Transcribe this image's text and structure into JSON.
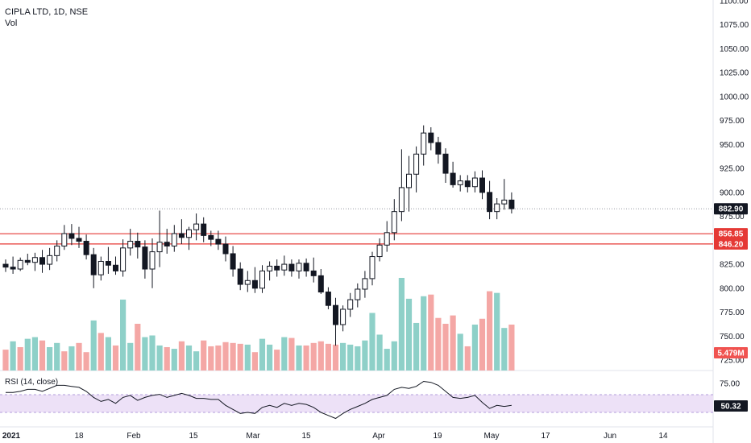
{
  "chart_data": {
    "type": "candlestick",
    "title": "CIPLA LTD, 1D, NSE",
    "volume_label": "Vol",
    "rsi_label": "RSI (14, close)",
    "price_axis": {
      "ylim": [
        730,
        1110
      ],
      "ticks": [
        "1100.00",
        "1075.00",
        "1050.00",
        "1025.00",
        "1000.00",
        "975.00",
        "950.00",
        "925.00",
        "900.00",
        "875.00",
        "850.00",
        "825.00",
        "800.00",
        "775.00",
        "750.00",
        "725.00"
      ]
    },
    "rsi_axis": {
      "ylim": [
        35,
        82
      ],
      "ticks": [
        "75.00",
        "50.00"
      ],
      "band": [
        30,
        70
      ]
    },
    "date_ticks": [
      "2021",
      "18",
      "Feb",
      "15",
      "Mar",
      "15",
      "Apr",
      "19",
      "May",
      "17",
      "Jun",
      "14"
    ],
    "last_price": {
      "label": "882.90",
      "value": 882.9
    },
    "levels": [
      {
        "label": "856.85",
        "value": 856.85
      },
      {
        "label": "846.20",
        "value": 846.2
      }
    ],
    "volume_tag": "5.479M",
    "rsi_tag": "50.32",
    "colors": {
      "up": "#26a69a",
      "down": "#000000",
      "vol_up": "#8ed0c8",
      "vol_down": "#f4a7a5",
      "level": "#e53935",
      "rsi": "#131722",
      "rsi_band": "#ede1f7",
      "tag_dark": "#131722",
      "tag_red": "#e53935",
      "vol_tag": "#f05350"
    },
    "candles": [
      [
        825,
        830,
        817,
        822
      ],
      [
        822,
        833,
        815,
        820
      ],
      [
        820,
        832,
        818,
        829
      ],
      [
        829,
        836,
        824,
        827
      ],
      [
        827,
        837,
        818,
        832
      ],
      [
        832,
        840,
        816,
        825
      ],
      [
        825,
        842,
        819,
        834
      ],
      [
        834,
        850,
        828,
        844
      ],
      [
        844,
        866,
        840,
        857
      ],
      [
        857,
        867,
        845,
        852
      ],
      [
        852,
        864,
        842,
        849
      ],
      [
        849,
        856,
        830,
        835
      ],
      [
        835,
        842,
        800,
        814
      ],
      [
        814,
        833,
        808,
        828
      ],
      [
        828,
        843,
        815,
        824
      ],
      [
        824,
        833,
        814,
        818
      ],
      [
        818,
        851,
        812,
        842
      ],
      [
        842,
        862,
        834,
        849
      ],
      [
        849,
        858,
        831,
        843
      ],
      [
        843,
        850,
        810,
        820
      ],
      [
        820,
        852,
        800,
        838
      ],
      [
        838,
        881,
        822,
        848
      ],
      [
        848,
        862,
        836,
        844
      ],
      [
        844,
        866,
        838,
        857
      ],
      [
        857,
        872,
        846,
        853
      ],
      [
        853,
        864,
        840,
        861
      ],
      [
        861,
        878,
        850,
        867
      ],
      [
        867,
        874,
        848,
        855
      ],
      [
        855,
        860,
        844,
        851
      ],
      [
        851,
        860,
        840,
        846
      ],
      [
        846,
        854,
        828,
        836
      ],
      [
        836,
        844,
        812,
        820
      ],
      [
        820,
        827,
        798,
        804
      ],
      [
        804,
        818,
        796,
        808
      ],
      [
        808,
        822,
        795,
        800
      ],
      [
        800,
        824,
        795,
        818
      ],
      [
        818,
        828,
        808,
        823
      ],
      [
        823,
        830,
        812,
        819
      ],
      [
        819,
        834,
        813,
        825
      ],
      [
        825,
        830,
        812,
        818
      ],
      [
        818,
        830,
        810,
        826
      ],
      [
        826,
        831,
        812,
        818
      ],
      [
        818,
        832,
        806,
        813
      ],
      [
        813,
        820,
        794,
        796
      ],
      [
        796,
        801,
        778,
        782
      ],
      [
        782,
        790,
        740,
        762
      ],
      [
        762,
        782,
        755,
        778
      ],
      [
        778,
        795,
        770,
        788
      ],
      [
        788,
        805,
        780,
        799
      ],
      [
        799,
        818,
        790,
        810
      ],
      [
        810,
        838,
        803,
        833
      ],
      [
        833,
        852,
        828,
        845
      ],
      [
        845,
        870,
        838,
        858
      ],
      [
        858,
        893,
        850,
        880
      ],
      [
        880,
        945,
        870,
        905
      ],
      [
        905,
        938,
        880,
        919
      ],
      [
        919,
        948,
        900,
        940
      ],
      [
        940,
        970,
        928,
        962
      ],
      [
        962,
        968,
        944,
        952
      ],
      [
        952,
        958,
        930,
        940
      ],
      [
        940,
        946,
        910,
        920
      ],
      [
        920,
        932,
        905,
        908
      ],
      [
        908,
        918,
        901,
        912
      ],
      [
        912,
        918,
        900,
        906
      ],
      [
        906,
        922,
        900,
        915
      ],
      [
        915,
        923,
        893,
        900
      ],
      [
        900,
        912,
        872,
        880
      ],
      [
        880,
        894,
        872,
        888
      ],
      [
        888,
        914,
        882,
        892
      ],
      [
        892,
        900,
        878,
        883
      ]
    ],
    "volume_millions": [
      2.5,
      3.5,
      2.8,
      3.8,
      4.0,
      3.6,
      2.8,
      3.3,
      2.3,
      2.9,
      3.3,
      2.2,
      6.0,
      4.5,
      4.0,
      3.0,
      8.5,
      3.3,
      5.6,
      4.0,
      4.2,
      3.0,
      2.8,
      2.6,
      3.5,
      3.0,
      2.3,
      3.6,
      2.9,
      3.0,
      3.4,
      3.3,
      3.2,
      3.1,
      2.2,
      3.8,
      3.1,
      2.5,
      4.0,
      3.9,
      3.0,
      3.0,
      3.3,
      3.5,
      3.2,
      3.1,
      3.3,
      3.1,
      2.9,
      3.6,
      6.9,
      4.3,
      2.6,
      3.5,
      11.1,
      8.6,
      5.7,
      8.9,
      9.1,
      6.3,
      5.6,
      6.6,
      4.4,
      2.9,
      5.5,
      6.2,
      9.5,
      9.3,
      5.1,
      5.5
    ],
    "volume_up": [
      false,
      true,
      false,
      true,
      true,
      false,
      true,
      true,
      false,
      true,
      false,
      false,
      true,
      false,
      true,
      false,
      true,
      true,
      false,
      true,
      true,
      true,
      false,
      true,
      false,
      true,
      true,
      false,
      false,
      false,
      false,
      false,
      false,
      true,
      false,
      true,
      true,
      false,
      true,
      false,
      true,
      false,
      false,
      false,
      false,
      false,
      true,
      true,
      true,
      true,
      true,
      true,
      true,
      true,
      true,
      true,
      true,
      true,
      false,
      false,
      false,
      false,
      true,
      false,
      true,
      false,
      false,
      true,
      true,
      false
    ],
    "rsi_values": [
      63,
      63,
      64,
      66,
      66,
      64,
      67,
      70,
      70,
      69,
      68,
      64,
      58,
      54,
      56,
      52,
      58,
      60,
      55,
      58,
      60,
      61,
      58,
      60,
      62,
      60,
      57,
      57,
      56,
      56,
      50,
      46,
      42,
      43,
      42,
      48,
      50,
      48,
      52,
      50,
      52,
      51,
      48,
      43,
      40,
      37,
      42,
      46,
      49,
      52,
      56,
      58,
      60,
      66,
      68,
      67,
      69,
      74,
      73,
      70,
      64,
      58,
      57,
      58,
      60,
      53,
      47,
      50,
      49,
      50
    ]
  }
}
